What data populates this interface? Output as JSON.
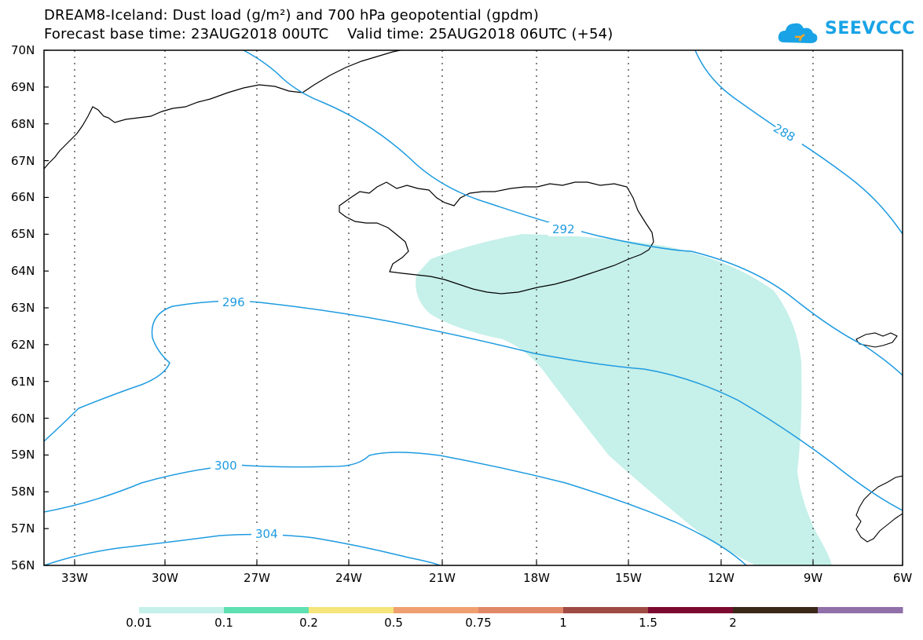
{
  "title": {
    "line1": "DREAM8-Iceland: Dust load (g/m²) and 700 hPa geopotential (gpdm)",
    "line2": "Forecast base time: 23AUG2018 00UTC    Valid time: 25AUG2018 06UTC (+54)"
  },
  "logo": {
    "text": "SEEVCCC",
    "color": "#19a3e6"
  },
  "map": {
    "lat_labels": [
      "70N",
      "69N",
      "68N",
      "67N",
      "66N",
      "65N",
      "64N",
      "63N",
      "62N",
      "61N",
      "60N",
      "59N",
      "58N",
      "57N",
      "56N"
    ],
    "lon_labels": [
      "33W",
      "30W",
      "27W",
      "24W",
      "21W",
      "18W",
      "15W",
      "12W",
      "9W",
      "6W"
    ],
    "contour_color": "#1e9be0",
    "dust_fill_color": "#c6f0ea",
    "contour_labels": [
      {
        "text": "288"
      },
      {
        "text": "292"
      },
      {
        "text": "296"
      },
      {
        "text": "300"
      },
      {
        "text": "304"
      }
    ]
  },
  "colorbar": {
    "colors": [
      "#c6f0ea",
      "#5ee0b2",
      "#f5e57a",
      "#f0a070",
      "#e08868",
      "#a04a44",
      "#7c0a30",
      "#3a2818",
      "#9070a8"
    ],
    "labels": [
      "0.01",
      "0.1",
      "0.2",
      "0.5",
      "0.75",
      "1",
      "1.5",
      "2"
    ]
  }
}
